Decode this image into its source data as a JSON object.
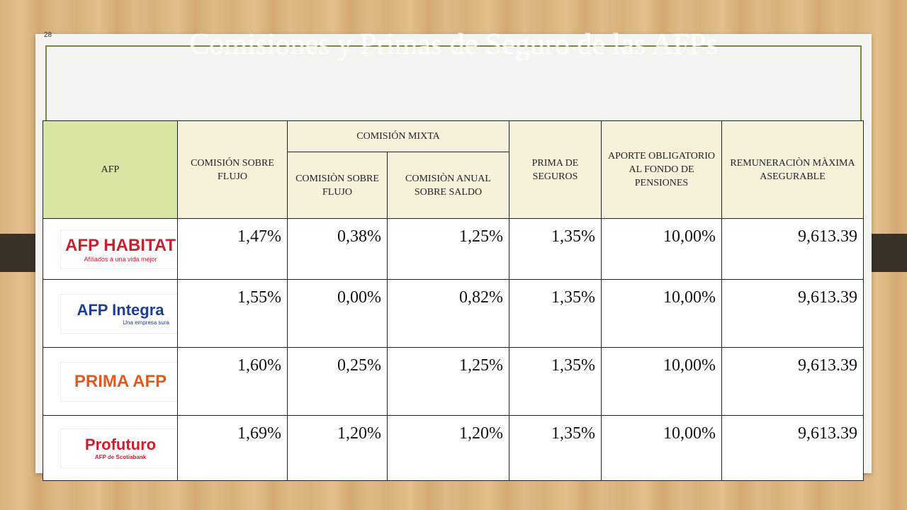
{
  "slide": {
    "page_number": "28",
    "title": "Comisiones y Primas de Seguro de las AFPs"
  },
  "table": {
    "headers": {
      "afp": "AFP",
      "comision_flujo": "COMISIÓN SOBRE FLUJO",
      "comision_mixta": "COMISIÓN MIXTA",
      "mixta_flujo": "COMISIÒN SOBRE FLUJO",
      "mixta_saldo": "COMISIÒN ANUAL SOBRE SALDO",
      "prima_seguros": "PRIMA DE SEGUROS",
      "aporte": "APORTE OBLIGATORIO AL FONDO DE PENSIONES",
      "remuneracion": "REMUNERACIÒN MÀXIMA ASEGURABLE"
    },
    "rows": [
      {
        "logo": {
          "main": "AFP HABITAT",
          "sub": "Afiliados a una vida mejor"
        },
        "values": [
          "1,47%",
          "0,38%",
          "1,25%",
          "1,35%",
          "10,00%",
          "9,613.39"
        ]
      },
      {
        "logo": {
          "main": "AFP Integra",
          "sub": "Una empresa sura"
        },
        "values": [
          "1,55%",
          "0,00%",
          "0,82%",
          "1,35%",
          "10,00%",
          "9,613.39"
        ]
      },
      {
        "logo": {
          "main": "PRIMA AFP",
          "sub": ""
        },
        "values": [
          "1,60%",
          "0,25%",
          "1,25%",
          "1,35%",
          "10,00%",
          "9,613.39"
        ]
      },
      {
        "logo": {
          "main": "Profuturo",
          "sub": "AFP de Scotiabank"
        },
        "values": [
          "1,69%",
          "1,20%",
          "1,20%",
          "1,35%",
          "10,00%",
          "9,613.39"
        ]
      }
    ]
  }
}
